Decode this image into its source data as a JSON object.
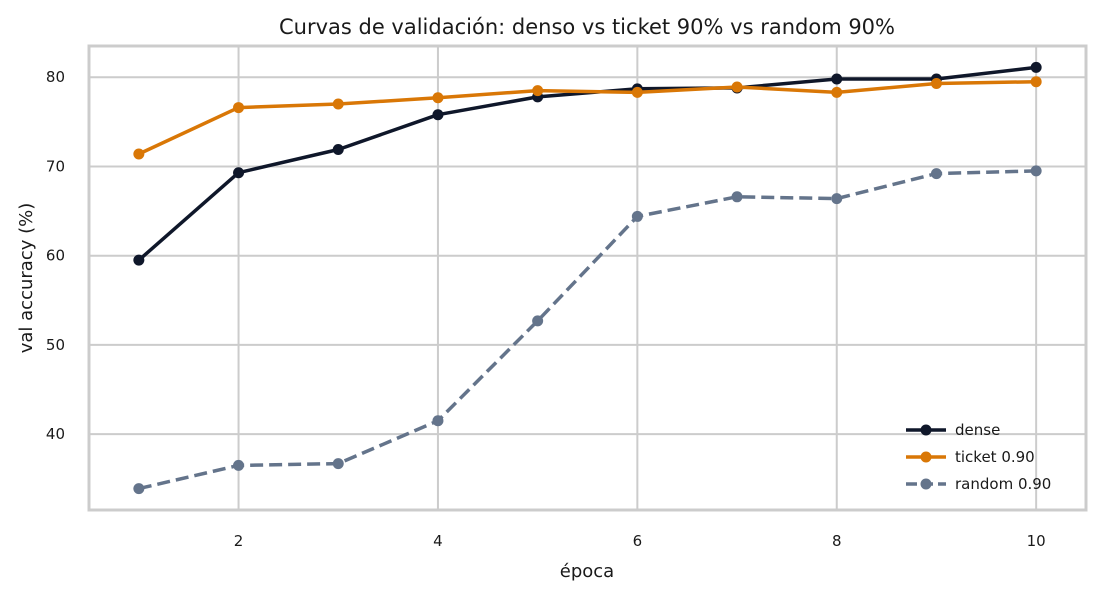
{
  "chart_data": {
    "type": "line",
    "title": "Curvas de validación: denso vs ticket 90% vs random 90%",
    "xlabel": "época",
    "ylabel": "val accuracy (%)",
    "x": [
      1,
      2,
      3,
      4,
      5,
      6,
      7,
      8,
      9,
      10
    ],
    "xlim": [
      0.5,
      10.5
    ],
    "ylim": [
      31.5,
      83.5
    ],
    "xticks": [
      2,
      4,
      6,
      8,
      10
    ],
    "yticks": [
      40,
      50,
      60,
      70,
      80
    ],
    "grid": true,
    "legend_position": "lower-right",
    "series": [
      {
        "name": "dense",
        "color": "#0f172a",
        "dash": "solid",
        "values": [
          59.5,
          69.3,
          71.9,
          75.8,
          77.8,
          78.7,
          78.8,
          79.8,
          79.8,
          81.1
        ]
      },
      {
        "name": "ticket 0.90",
        "color": "#d97706",
        "dash": "solid",
        "values": [
          71.4,
          76.6,
          77.0,
          77.7,
          78.5,
          78.3,
          78.9,
          78.3,
          79.3,
          79.5
        ]
      },
      {
        "name": "random 0.90",
        "color": "#64748b",
        "dash": "dashed",
        "values": [
          33.9,
          36.5,
          36.7,
          41.5,
          52.7,
          64.4,
          66.6,
          66.4,
          69.2,
          69.5
        ]
      }
    ]
  }
}
